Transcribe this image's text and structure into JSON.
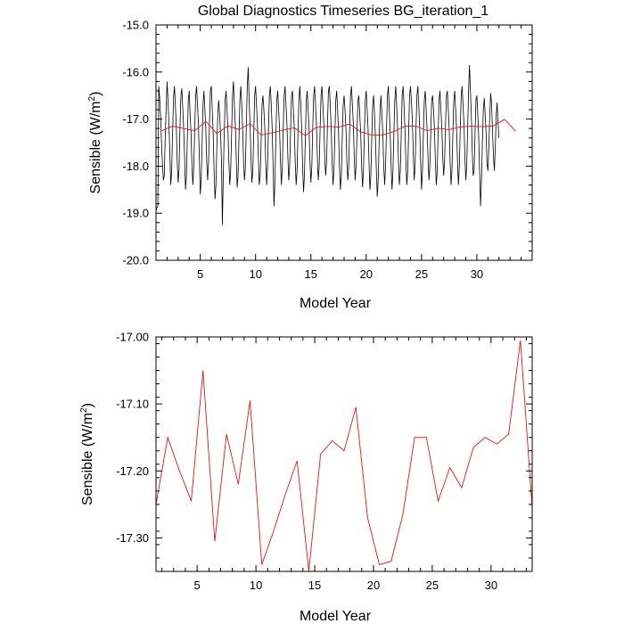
{
  "figure": {
    "title": "Global Diagnostics Timeseries BG_iteration_1"
  },
  "colors": {
    "monthly_series": "#000000",
    "annual_series": "#e8141b",
    "axes": "#000000",
    "background": "#ffffff"
  },
  "chart_data": [
    {
      "type": "line",
      "xlabel": "Model Year",
      "ylabel_main": "Sensible (W/m",
      "ylabel_sup": "2",
      "ylabel_close": ")",
      "xlim": [
        1,
        35
      ],
      "ylim": [
        -20.0,
        -15.0
      ],
      "xticks": [
        5,
        10,
        15,
        20,
        25,
        30
      ],
      "xtick_labels": [
        "5",
        "10",
        "15",
        "20",
        "25",
        "30"
      ],
      "yticks": [
        -20.0,
        -19.0,
        -18.0,
        -17.0,
        -16.0,
        -15.0
      ],
      "ytick_labels": [
        "-20.0",
        "-19.0",
        "-18.0",
        "-17.0",
        "-16.0",
        "-15.0"
      ],
      "grid": false,
      "legend": "none",
      "series": [
        {
          "style": "black",
          "x_start": 1.0,
          "x_step": 0.083333,
          "values": [
            -18.95,
            -18.88,
            -18.85,
            -16.3,
            -16.55,
            -16.98,
            -17.5,
            -17.95,
            -18.3,
            -18.2,
            -17.4,
            -16.75,
            -16.2,
            -16.6,
            -17.1,
            -17.7,
            -18.4,
            -18.1,
            -17.3,
            -16.55,
            -16.3,
            -16.7,
            -17.15,
            -17.9,
            -18.35,
            -18.05,
            -17.2,
            -16.5,
            -16.35,
            -16.75,
            -17.2,
            -17.8,
            -18.5,
            -18.2,
            -17.4,
            -16.6,
            -16.4,
            -16.9,
            -17.3,
            -18.0,
            -18.4,
            -18.0,
            -17.2,
            -16.5,
            -16.3,
            -16.7,
            -17.1,
            -17.8,
            -18.6,
            -18.3,
            -17.5,
            -16.7,
            -16.4,
            -16.8,
            -17.2,
            -17.9,
            -18.3,
            -17.9,
            -17.1,
            -16.4,
            -16.3,
            -16.8,
            -17.3,
            -18.1,
            -18.7,
            -18.4,
            -17.6,
            -16.9,
            -16.6,
            -16.9,
            -17.3,
            -17.9,
            -19.25,
            -18.2,
            -17.3,
            -16.6,
            -16.4,
            -16.8,
            -17.2,
            -17.9,
            -18.4,
            -18.1,
            -17.3,
            -16.5,
            -16.2,
            -16.7,
            -17.1,
            -17.8,
            -18.45,
            -18.2,
            -17.4,
            -16.6,
            -16.3,
            -16.7,
            -17.2,
            -17.9,
            -18.3,
            -18.0,
            -17.1,
            -16.3,
            -15.9,
            -16.6,
            -17.1,
            -17.8,
            -18.35,
            -18.1,
            -17.3,
            -16.5,
            -16.3,
            -16.7,
            -17.1,
            -17.8,
            -18.4,
            -18.2,
            -17.5,
            -16.7,
            -16.5,
            -16.8,
            -17.2,
            -17.9,
            -18.4,
            -18.0,
            -17.2,
            -16.5,
            -16.3,
            -16.7,
            -17.2,
            -18.0,
            -18.85,
            -18.3,
            -17.4,
            -16.6,
            -16.4,
            -16.8,
            -17.2,
            -17.9,
            -18.4,
            -18.0,
            -17.2,
            -16.5,
            -16.3,
            -16.7,
            -17.1,
            -17.8,
            -18.3,
            -18.0,
            -17.2,
            -16.5,
            -16.4,
            -16.8,
            -17.2,
            -17.9,
            -18.4,
            -18.1,
            -17.3,
            -16.6,
            -16.3,
            -16.7,
            -17.2,
            -18.0,
            -18.55,
            -18.2,
            -17.4,
            -16.6,
            -16.4,
            -16.8,
            -17.2,
            -17.9,
            -18.35,
            -18.0,
            -17.2,
            -16.5,
            -16.3,
            -16.7,
            -17.1,
            -17.8,
            -18.3,
            -18.0,
            -17.2,
            -16.5,
            -16.3,
            -16.7,
            -17.1,
            -17.8,
            -18.2,
            -17.9,
            -17.1,
            -16.4,
            -16.3,
            -16.7,
            -17.2,
            -17.9,
            -18.4,
            -18.1,
            -17.3,
            -16.6,
            -16.4,
            -16.8,
            -17.3,
            -18.0,
            -18.5,
            -18.2,
            -17.4,
            -16.7,
            -16.5,
            -16.8,
            -17.2,
            -17.9,
            -18.3,
            -18.0,
            -17.2,
            -16.5,
            -16.3,
            -16.7,
            -17.1,
            -17.8,
            -18.3,
            -18.0,
            -17.3,
            -16.6,
            -16.5,
            -16.9,
            -17.3,
            -18.0,
            -18.45,
            -18.1,
            -17.3,
            -16.6,
            -16.4,
            -16.8,
            -17.2,
            -17.9,
            -18.5,
            -18.2,
            -17.4,
            -16.7,
            -16.5,
            -16.9,
            -17.4,
            -18.1,
            -18.65,
            -18.3,
            -17.5,
            -16.8,
            -16.5,
            -16.9,
            -17.3,
            -18.0,
            -18.4,
            -18.0,
            -17.2,
            -16.5,
            -16.3,
            -16.8,
            -17.3,
            -18.0,
            -18.5,
            -18.1,
            -17.3,
            -16.6,
            -16.3,
            -16.7,
            -17.2,
            -17.9,
            -18.4,
            -18.1,
            -17.3,
            -16.5,
            -16.3,
            -16.7,
            -17.2,
            -17.9,
            -18.4,
            -18.1,
            -17.3,
            -16.5,
            -16.3,
            -16.6,
            -17.0,
            -17.7,
            -18.3,
            -18.0,
            -17.2,
            -16.5,
            -16.3,
            -16.7,
            -17.2,
            -17.9,
            -18.5,
            -18.1,
            -17.3,
            -16.6,
            -16.4,
            -16.8,
            -17.2,
            -17.8,
            -18.3,
            -18.0,
            -17.3,
            -16.6,
            -16.5,
            -16.8,
            -17.2,
            -17.9,
            -18.4,
            -18.1,
            -17.3,
            -16.6,
            -16.4,
            -16.8,
            -17.2,
            -17.8,
            -18.2,
            -17.9,
            -17.1,
            -16.5,
            -16.4,
            -16.8,
            -17.2,
            -17.9,
            -18.4,
            -18.1,
            -17.3,
            -16.6,
            -16.4,
            -16.8,
            -17.2,
            -17.9,
            -18.4,
            -18.0,
            -17.2,
            -16.5,
            -16.3,
            -16.7,
            -17.1,
            -17.8,
            -18.3,
            -18.0,
            -17.2,
            -16.4,
            -15.85,
            -16.4,
            -16.9,
            -17.7,
            -18.2,
            -18.1,
            -17.3,
            -16.6,
            -16.5,
            -16.9,
            -17.4,
            -18.1,
            -18.85,
            -18.3,
            -17.5,
            -16.8,
            -16.55,
            -16.9,
            -17.3,
            -17.95,
            -18.1,
            -17.6,
            -16.9,
            -16.45,
            -16.7,
            -17.25,
            -17.8,
            -18.1,
            -17.6,
            -16.9,
            -16.65,
            -17.1,
            -17.4
          ]
        },
        {
          "style": "red",
          "x": [
            1.5,
            2.5,
            3.5,
            4.5,
            5.5,
            6.5,
            7.5,
            8.5,
            9.5,
            10.5,
            11.5,
            12.5,
            13.5,
            14.5,
            15.5,
            16.5,
            17.5,
            18.5,
            19.5,
            20.5,
            21.5,
            22.5,
            23.5,
            24.5,
            25.5,
            26.5,
            27.5,
            28.5,
            29.5,
            30.5,
            31.5,
            32.5,
            33.5
          ],
          "values": [
            -17.25,
            -17.15,
            -17.2,
            -17.245,
            -17.05,
            -17.305,
            -17.145,
            -17.22,
            -17.095,
            -17.34,
            -17.29,
            -17.235,
            -17.185,
            -17.35,
            -17.175,
            -17.155,
            -17.17,
            -17.105,
            -17.27,
            -17.34,
            -17.335,
            -17.265,
            -17.15,
            -17.15,
            -17.245,
            -17.195,
            -17.225,
            -17.165,
            -17.15,
            -17.16,
            -17.145,
            -17.005,
            -17.255
          ]
        }
      ]
    },
    {
      "type": "line",
      "xlabel": "Model Year",
      "ylabel_main": "Sensible (W/m",
      "ylabel_sup": "2",
      "ylabel_close": ")",
      "xlim": [
        1.5,
        33.5
      ],
      "ylim": [
        -17.35,
        -17.0
      ],
      "xticks": [
        5,
        10,
        15,
        20,
        25,
        30
      ],
      "xtick_labels": [
        "5",
        "10",
        "15",
        "20",
        "25",
        "30"
      ],
      "yticks": [
        -17.3,
        -17.2,
        -17.1,
        -17.0
      ],
      "ytick_labels": [
        "-17.30",
        "-17.20",
        "-17.10",
        "-17.00"
      ],
      "grid": false,
      "legend": "none",
      "series": [
        {
          "style": "red",
          "x": [
            1.5,
            2.5,
            3.5,
            4.5,
            5.5,
            6.5,
            7.5,
            8.5,
            9.5,
            10.5,
            11.5,
            12.5,
            13.5,
            14.5,
            15.5,
            16.5,
            17.5,
            18.5,
            19.5,
            20.5,
            21.5,
            22.5,
            23.5,
            24.5,
            25.5,
            26.5,
            27.5,
            28.5,
            29.5,
            30.5,
            31.5,
            32.5,
            33.5
          ],
          "values": [
            -17.25,
            -17.15,
            -17.2,
            -17.245,
            -17.05,
            -17.305,
            -17.145,
            -17.22,
            -17.095,
            -17.34,
            -17.29,
            -17.235,
            -17.185,
            -17.35,
            -17.175,
            -17.155,
            -17.17,
            -17.105,
            -17.27,
            -17.34,
            -17.335,
            -17.265,
            -17.15,
            -17.15,
            -17.245,
            -17.195,
            -17.225,
            -17.165,
            -17.15,
            -17.16,
            -17.145,
            -17.005,
            -17.255
          ]
        }
      ]
    }
  ]
}
